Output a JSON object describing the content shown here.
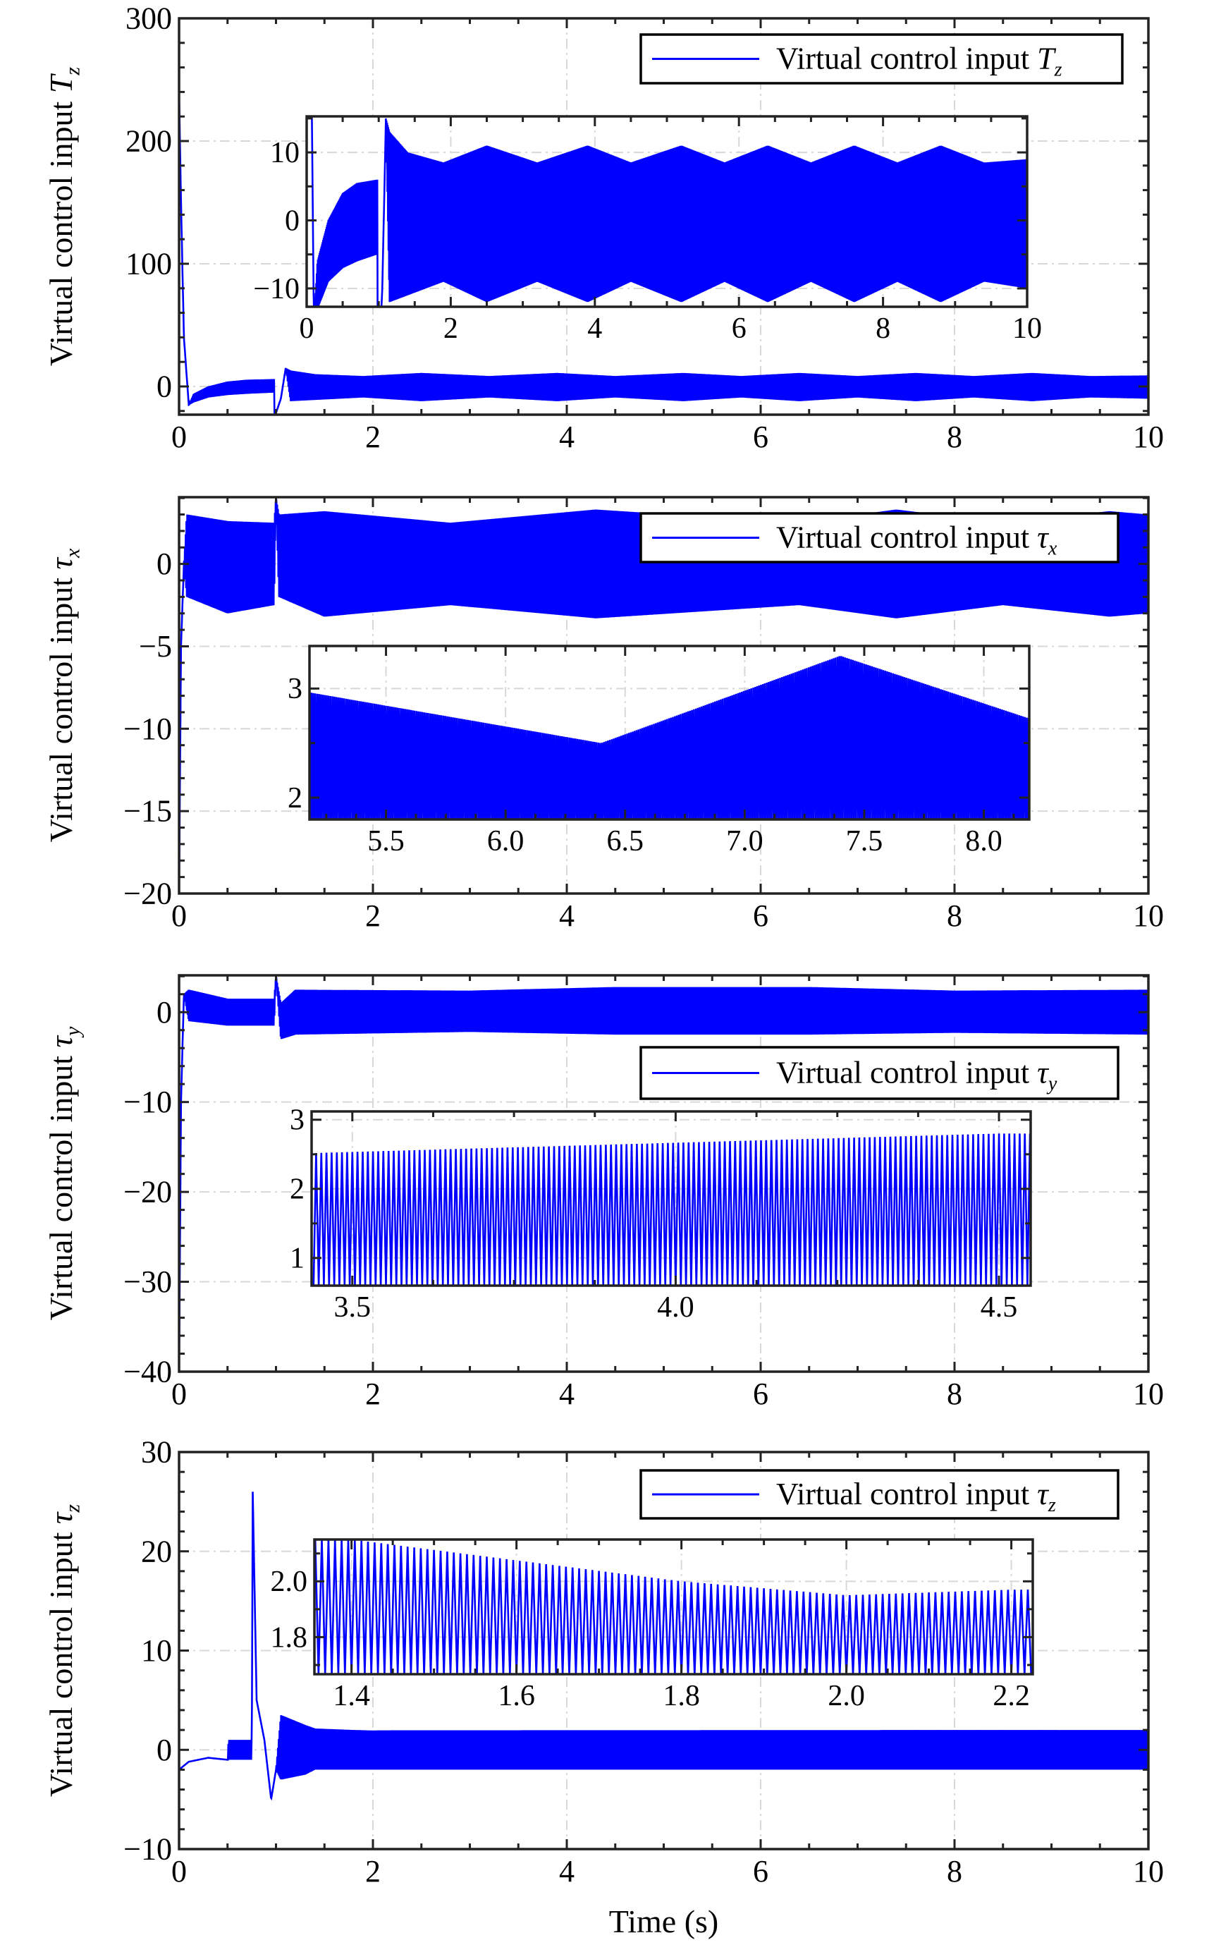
{
  "chart_data": [
    {
      "type": "line",
      "ylabel": {
        "text": "Virtual control input ",
        "symbol": "T",
        "sub": "z"
      },
      "legend": {
        "text": "Virtual control input ",
        "symbol": "T",
        "sub": "z",
        "placement": "top-right"
      },
      "xlim": [
        0,
        10
      ],
      "ylim": [
        -23,
        300
      ],
      "xticks": [
        0,
        2,
        4,
        6,
        8,
        10
      ],
      "xticklabels": [
        "0",
        "2",
        "4",
        "6",
        "8",
        "10"
      ],
      "yticks": [
        0,
        100,
        200,
        300
      ],
      "yticklabels": [
        "0",
        "100",
        "200",
        "300"
      ],
      "grid": true,
      "color": "#0000ff",
      "envelope_t_min_max": [
        [
          0,
          240,
          240
        ],
        [
          0.02,
          150,
          150
        ],
        [
          0.05,
          40,
          40
        ],
        [
          0.1,
          -15,
          -15
        ],
        [
          0.15,
          -13,
          -6
        ],
        [
          0.3,
          -9,
          0
        ],
        [
          0.5,
          -7,
          4
        ],
        [
          0.7,
          -6,
          5.5
        ],
        [
          0.98,
          -5,
          6
        ],
        [
          0.985,
          -25,
          -25
        ],
        [
          1.05,
          -10,
          -10
        ],
        [
          1.1,
          15,
          15
        ],
        [
          1.15,
          -12,
          13
        ],
        [
          1.4,
          -11,
          10
        ],
        [
          1.9,
          -9,
          8.5
        ],
        [
          2.5,
          -12,
          11
        ],
        [
          3.2,
          -9,
          8.5
        ],
        [
          3.9,
          -12,
          11
        ],
        [
          4.5,
          -9,
          8.5
        ],
        [
          5.2,
          -12,
          11
        ],
        [
          5.8,
          -9,
          8.5
        ],
        [
          6.4,
          -12,
          11
        ],
        [
          7.0,
          -9,
          8.5
        ],
        [
          7.6,
          -12,
          11
        ],
        [
          8.2,
          -9,
          8.5
        ],
        [
          8.8,
          -12,
          11
        ],
        [
          9.4,
          -9,
          8.5
        ],
        [
          10,
          -10,
          9
        ]
      ],
      "inset": {
        "xlim": [
          0,
          10
        ],
        "ylim": [
          -12.7,
          15.3
        ],
        "xticks": [
          0,
          2,
          4,
          6,
          8,
          10
        ],
        "xticklabels": [
          "0",
          "2",
          "4",
          "6",
          "8",
          "10"
        ],
        "yticks": [
          -10,
          0,
          10
        ],
        "yticklabels": [
          "−10",
          "0",
          "10"
        ]
      }
    },
    {
      "type": "line",
      "ylabel": {
        "text": "Virtual control input ",
        "symbol": "τ",
        "sub": "x"
      },
      "legend": {
        "text": "Virtual control input ",
        "symbol": "τ",
        "sub": "x",
        "placement": "top-right"
      },
      "xlim": [
        0,
        10
      ],
      "ylim": [
        -20,
        4.05
      ],
      "xticks": [
        0,
        2,
        4,
        6,
        8,
        10
      ],
      "xticklabels": [
        "0",
        "2",
        "4",
        "6",
        "8",
        "10"
      ],
      "yticks": [
        -20,
        -15,
        -10,
        -5,
        0
      ],
      "yticklabels": [
        "−20",
        "−15",
        "−10",
        "−5",
        "0"
      ],
      "grid": true,
      "color": "#0000ff",
      "envelope_t_min_max": [
        [
          0,
          -20,
          -20
        ],
        [
          0.02,
          -5,
          -5
        ],
        [
          0.05,
          0,
          0
        ],
        [
          0.08,
          -2,
          3
        ],
        [
          0.5,
          -3,
          2.6
        ],
        [
          0.98,
          -2.5,
          2.5
        ],
        [
          1.0,
          4,
          4
        ],
        [
          1.03,
          -2,
          3
        ],
        [
          1.5,
          -3.2,
          3.2
        ],
        [
          2.8,
          -2.5,
          2.5
        ],
        [
          4.3,
          -3.3,
          3.3
        ],
        [
          6.4,
          -2.5,
          2.5
        ],
        [
          7.4,
          -3.3,
          3.3
        ],
        [
          8.5,
          -2.5,
          2.5
        ],
        [
          9.6,
          -3.2,
          3.2
        ],
        [
          10,
          -3,
          3
        ]
      ],
      "inset": {
        "xlim": [
          5.18,
          8.19
        ],
        "ylim": [
          1.8,
          3.39
        ],
        "xticks": [
          5.5,
          6.0,
          6.5,
          7.0,
          7.5,
          8.0
        ],
        "xticklabels": [
          "5.5",
          "6.0",
          "6.5",
          "7.0",
          "7.5",
          "8.0"
        ],
        "yticks": [
          2,
          3
        ],
        "yticklabels": [
          "2",
          "3"
        ]
      }
    },
    {
      "type": "line",
      "ylabel": {
        "text": "Virtual control input ",
        "symbol": "τ",
        "sub": "y"
      },
      "legend": {
        "text": "Virtual control input ",
        "symbol": "τ",
        "sub": "y",
        "placement": "top-right"
      },
      "xlim": [
        0,
        10
      ],
      "ylim": [
        -40,
        4.1
      ],
      "xticks": [
        0,
        2,
        4,
        6,
        8,
        10
      ],
      "xticklabels": [
        "0",
        "2",
        "4",
        "6",
        "8",
        "10"
      ],
      "yticks": [
        -40,
        -30,
        -20,
        -10,
        0
      ],
      "yticklabels": [
        "−40",
        "−30",
        "−20",
        "−10",
        "0"
      ],
      "grid": true,
      "color": "#0000ff",
      "envelope_t_min_max": [
        [
          0,
          -40,
          -40
        ],
        [
          0.02,
          -10,
          -10
        ],
        [
          0.05,
          2,
          2
        ],
        [
          0.1,
          -1,
          2.5
        ],
        [
          0.5,
          -1.5,
          1.5
        ],
        [
          0.98,
          -1.5,
          1.5
        ],
        [
          1.0,
          4,
          4
        ],
        [
          1.05,
          -3,
          1
        ],
        [
          1.2,
          -2.5,
          2.5
        ],
        [
          3.0,
          -2.2,
          2.4
        ],
        [
          4.5,
          -2.5,
          2.8
        ],
        [
          6.5,
          -2.5,
          2.8
        ],
        [
          8.0,
          -2.3,
          2.4
        ],
        [
          10,
          -2.5,
          2.5
        ]
      ],
      "inset": {
        "xlim": [
          3.437,
          4.549
        ],
        "ylim": [
          0.6,
          3.12
        ],
        "xticks": [
          3.5,
          4.0,
          4.5
        ],
        "xticklabels": [
          "3.5",
          "4.0",
          "4.5"
        ],
        "yticks": [
          1,
          2,
          3
        ],
        "yticklabels": [
          "1",
          "2",
          "3"
        ]
      }
    },
    {
      "type": "line",
      "ylabel": {
        "text": "Virtual control input ",
        "symbol": "τ",
        "sub": "z"
      },
      "legend": {
        "text": "Virtual control input ",
        "symbol": "τ",
        "sub": "z",
        "placement": "top-right"
      },
      "xlabel": "Time (s)",
      "xlim": [
        0,
        10
      ],
      "ylim": [
        -10,
        30
      ],
      "xticks": [
        0,
        2,
        4,
        6,
        8,
        10
      ],
      "xticklabels": [
        "0",
        "2",
        "4",
        "6",
        "8",
        "10"
      ],
      "yticks": [
        -10,
        0,
        10,
        20,
        30
      ],
      "yticklabels": [
        "−10",
        "0",
        "10",
        "20",
        "30"
      ],
      "grid": true,
      "color": "#0000ff",
      "envelope_t_min_max": [
        [
          0,
          -2,
          -2
        ],
        [
          0.1,
          -1.2,
          -1.2
        ],
        [
          0.3,
          -0.8,
          -0.8
        ],
        [
          0.5,
          -1,
          -1
        ],
        [
          0.51,
          -1,
          1
        ],
        [
          0.75,
          -1,
          1
        ],
        [
          0.76,
          26,
          26
        ],
        [
          0.8,
          5,
          5
        ],
        [
          0.88,
          1,
          1
        ],
        [
          0.95,
          -5,
          -5
        ],
        [
          1.0,
          -2,
          -2
        ],
        [
          1.05,
          -3,
          3.5
        ],
        [
          1.3,
          -2.5,
          2.5
        ],
        [
          1.4,
          -2,
          2.15
        ],
        [
          1.8,
          -2,
          2.0
        ],
        [
          2.0,
          -2,
          1.95
        ],
        [
          2.2,
          -2,
          1.97
        ],
        [
          10,
          -2,
          2
        ]
      ],
      "inset": {
        "xlim": [
          1.355,
          2.226
        ],
        "ylim": [
          1.667,
          2.15
        ],
        "xticks": [
          1.4,
          1.6,
          1.8,
          2.0,
          2.2
        ],
        "xticklabels": [
          "1.4",
          "1.6",
          "1.8",
          "2.0",
          "2.2"
        ],
        "yticks": [
          1.8,
          2.0
        ],
        "yticklabels": [
          "1.8",
          "2.0"
        ]
      }
    }
  ]
}
